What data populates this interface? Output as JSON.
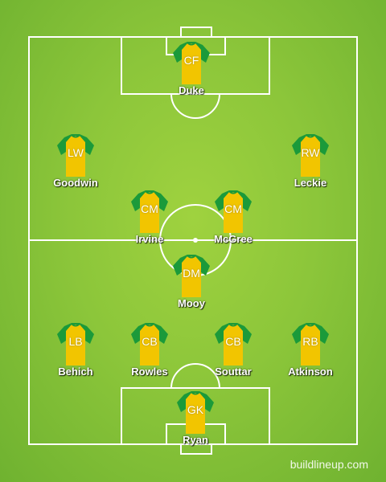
{
  "colors": {
    "shirt_body": "#f2c500",
    "shirt_sleeves": "#1b9a3a",
    "lines": "#ffffff"
  },
  "players": [
    {
      "pos": "CF",
      "name": "Duke"
    },
    {
      "pos": "LW",
      "name": "Goodwin"
    },
    {
      "pos": "RW",
      "name": "Leckie"
    },
    {
      "pos": "CM",
      "name": "Irvine"
    },
    {
      "pos": "CM",
      "name": "McGree"
    },
    {
      "pos": "DM",
      "name": "Mooy"
    },
    {
      "pos": "LB",
      "name": "Behich"
    },
    {
      "pos": "CB",
      "name": "Rowles"
    },
    {
      "pos": "CB",
      "name": "Souttar"
    },
    {
      "pos": "RB",
      "name": "Atkinson"
    },
    {
      "pos": "GK",
      "name": "Ryan"
    }
  ],
  "watermark": "buildlineup.com",
  "icons": {
    "shirt": "jersey-icon"
  }
}
